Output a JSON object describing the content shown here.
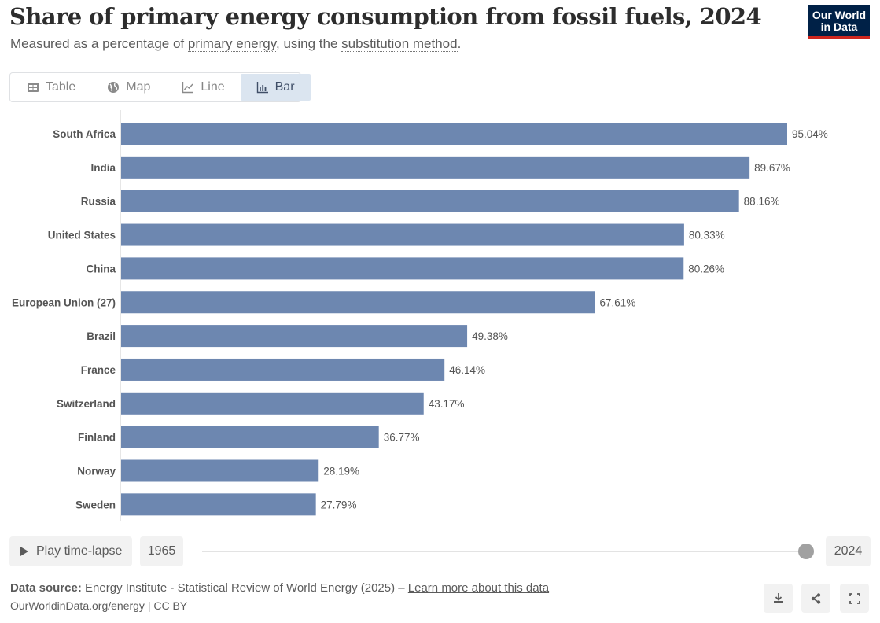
{
  "header": {
    "title": "Share of primary energy consumption from fossil fuels, 2024",
    "subtitle_prefix": "Measured as a percentage of ",
    "subtitle_link1": "primary energy",
    "subtitle_middle": ", using the ",
    "subtitle_link2": "substitution method",
    "subtitle_suffix": ".",
    "logo_line1": "Our World",
    "logo_line2": "in Data"
  },
  "tabs": [
    {
      "label": "Table",
      "icon": "table-icon",
      "active": false
    },
    {
      "label": "Map",
      "icon": "globe-icon",
      "active": false
    },
    {
      "label": "Line",
      "icon": "line-chart-icon",
      "active": false
    },
    {
      "label": "Bar",
      "icon": "bar-chart-icon",
      "active": true
    }
  ],
  "colors": {
    "bar": "#6d87b0",
    "accent_tab_bg": "#dbe5f0",
    "logo_bg": "#002147",
    "logo_stripe": "#ce261e"
  },
  "chart_data": {
    "type": "bar",
    "orientation": "horizontal",
    "title": "Share of primary energy consumption from fossil fuels, 2024",
    "xlabel": "",
    "ylabel": "",
    "unit": "%",
    "xlim": [
      0,
      100
    ],
    "grid": false,
    "categories": [
      "South Africa",
      "India",
      "Russia",
      "United States",
      "China",
      "European Union (27)",
      "Brazil",
      "France",
      "Switzerland",
      "Finland",
      "Norway",
      "Sweden"
    ],
    "values": [
      95.04,
      89.67,
      88.16,
      80.33,
      80.26,
      67.61,
      49.38,
      46.14,
      43.17,
      36.77,
      28.19,
      27.79
    ],
    "value_labels": [
      "95.04%",
      "89.67%",
      "88.16%",
      "80.33%",
      "80.26%",
      "67.61%",
      "49.38%",
      "46.14%",
      "43.17%",
      "36.77%",
      "28.19%",
      "27.79%"
    ]
  },
  "timeline": {
    "play_label": "Play time-lapse",
    "start_year": "1965",
    "end_year": "2024",
    "selected_year": "2024"
  },
  "footer": {
    "source_label": "Data source:",
    "source_text": " Energy Institute - Statistical Review of World Energy (2025) – ",
    "learn_more": "Learn more about this data",
    "site_text": "OurWorldinData.org/energy | CC BY"
  },
  "actions": [
    {
      "name": "download",
      "icon": "download-icon"
    },
    {
      "name": "share",
      "icon": "share-icon"
    },
    {
      "name": "fullscreen",
      "icon": "fullscreen-icon"
    }
  ]
}
